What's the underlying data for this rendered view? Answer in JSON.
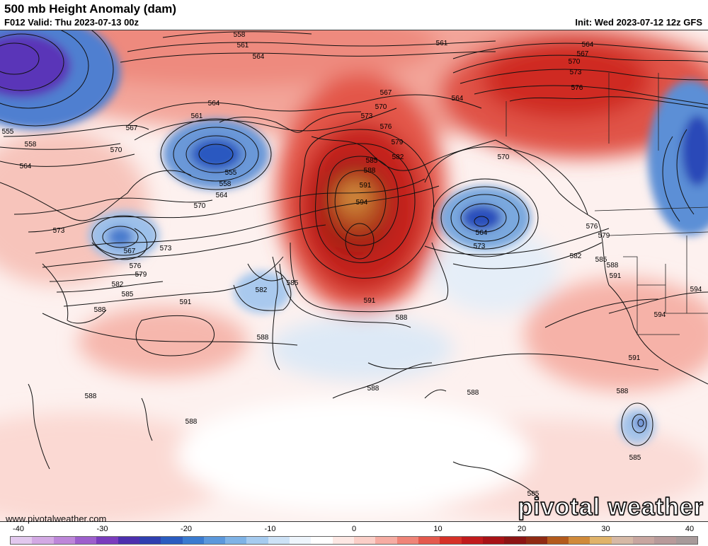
{
  "header": {
    "title": "500 mb Height Anomaly (dam)",
    "valid": "F012 Valid: Thu 2023-07-13 00z",
    "init": "Init: Wed 2023-07-12 12z GFS"
  },
  "footer": {
    "website": "www.pivotalweather.com",
    "brand": "pivotal weather"
  },
  "colorbar": {
    "ticks": [
      "-40",
      "-30",
      "-20",
      "-10",
      "0",
      "10",
      "20",
      "30",
      "40"
    ],
    "colors": [
      "#e2c8ee",
      "#d3a9e4",
      "#bd86d9",
      "#9d5fcc",
      "#7a3cbd",
      "#4c2fae",
      "#2f3fb0",
      "#2a5cc0",
      "#3a7bd0",
      "#5b98dc",
      "#7fb3e6",
      "#a6cbef",
      "#cde2f6",
      "#eef5fc",
      "#ffffff",
      "#fde8e4",
      "#fbcfc8",
      "#f6aca3",
      "#ef8478",
      "#e4594d",
      "#d63127",
      "#c11a1c",
      "#a81216",
      "#8c1414",
      "#8f2a13",
      "#b35a1c",
      "#d08a3a",
      "#e0b36a",
      "#d6b9a6",
      "#c8a6a0",
      "#b89a9a",
      "#a89a9a"
    ]
  },
  "contour_labels": [
    {
      "id": "558-top",
      "text": "558"
    },
    {
      "id": "561-top",
      "text": "561"
    },
    {
      "id": "564-top",
      "text": "564"
    },
    {
      "id": "561-ne",
      "text": "561"
    },
    {
      "id": "564-ne1",
      "text": "564"
    },
    {
      "id": "567-ne",
      "text": "567"
    },
    {
      "id": "570-ne",
      "text": "570"
    },
    {
      "id": "573-ne",
      "text": "573"
    },
    {
      "id": "576-ne",
      "text": "576"
    },
    {
      "id": "567-mid",
      "text": "567"
    },
    {
      "id": "570-mid",
      "text": "570"
    },
    {
      "id": "564-mid",
      "text": "564"
    },
    {
      "id": "573-mid",
      "text": "573"
    },
    {
      "id": "576-mid",
      "text": "576"
    },
    {
      "id": "579-mid",
      "text": "579"
    },
    {
      "id": "582-mid",
      "text": "582"
    },
    {
      "id": "585-ridge",
      "text": "585"
    },
    {
      "id": "588-ridge",
      "text": "588"
    },
    {
      "id": "591-ridge",
      "text": "591"
    },
    {
      "id": "594-ridge",
      "text": "594"
    },
    {
      "id": "561-wlow",
      "text": "561"
    },
    {
      "id": "564-wlow",
      "text": "564"
    },
    {
      "id": "555-wlow",
      "text": "555"
    },
    {
      "id": "558-wlow",
      "text": "558"
    },
    {
      "id": "564-wlow2",
      "text": "564"
    },
    {
      "id": "567-w",
      "text": "567"
    },
    {
      "id": "570-w",
      "text": "570"
    },
    {
      "id": "570-w2",
      "text": "570"
    },
    {
      "id": "555-far",
      "text": "555"
    },
    {
      "id": "558-far",
      "text": "558"
    },
    {
      "id": "564-far",
      "text": "564"
    },
    {
      "id": "573-japan",
      "text": "573"
    },
    {
      "id": "567-japan",
      "text": "567"
    },
    {
      "id": "573-japan2",
      "text": "573"
    },
    {
      "id": "576-japan",
      "text": "576"
    },
    {
      "id": "579-japan",
      "text": "579"
    },
    {
      "id": "582-japan",
      "text": "582"
    },
    {
      "id": "585-japan",
      "text": "585"
    },
    {
      "id": "588-japan",
      "text": "588"
    },
    {
      "id": "591-west",
      "text": "591"
    },
    {
      "id": "588-west",
      "text": "588"
    },
    {
      "id": "582-dip",
      "text": "582"
    },
    {
      "id": "585-dip",
      "text": "585"
    },
    {
      "id": "591-ridge-s",
      "text": "591"
    },
    {
      "id": "588-ridge-s",
      "text": "588"
    },
    {
      "id": "570-elow",
      "text": "570"
    },
    {
      "id": "564-elow",
      "text": "564"
    },
    {
      "id": "573-elow",
      "text": "573"
    },
    {
      "id": "576-coast",
      "text": "576"
    },
    {
      "id": "579-coast",
      "text": "579"
    },
    {
      "id": "582-coast",
      "text": "582"
    },
    {
      "id": "585-coast",
      "text": "585"
    },
    {
      "id": "588-coast",
      "text": "588"
    },
    {
      "id": "591-coast",
      "text": "591"
    },
    {
      "id": "594-sw1",
      "text": "594"
    },
    {
      "id": "594-sw2",
      "text": "594"
    },
    {
      "id": "591-sw",
      "text": "591"
    },
    {
      "id": "588-sw",
      "text": "588"
    },
    {
      "id": "588-s1",
      "text": "588"
    },
    {
      "id": "588-s2",
      "text": "588"
    },
    {
      "id": "588-s3",
      "text": "588"
    },
    {
      "id": "588-sw2",
      "text": "588"
    },
    {
      "id": "585-trop",
      "text": "585"
    },
    {
      "id": "585-bot",
      "text": "585"
    }
  ]
}
